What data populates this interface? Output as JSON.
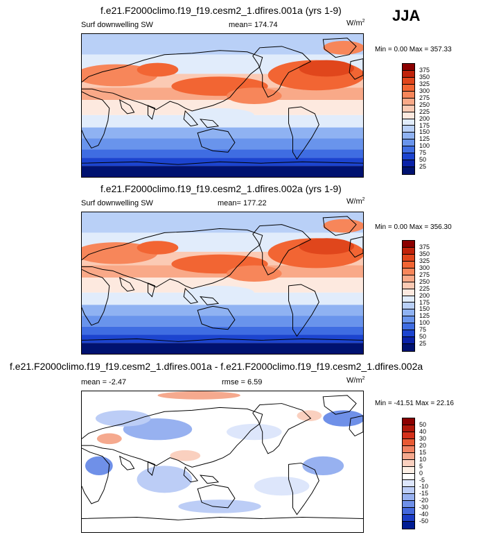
{
  "season": "JJA",
  "chart_data": [
    {
      "type": "heatmap",
      "title": "f.e21.F2000climo.f19_f19.cesm2_1.dfires.001a (yrs 1-9)",
      "variable": "Surf downwelling SW",
      "stat_label": "mean=",
      "stat_value": "174.74",
      "units": "W/m",
      "units_exp": "2",
      "minmax": "Min =   0.00 Max = 357.33",
      "min": 0.0,
      "max": 357.33,
      "levels": [
        "375",
        "350",
        "325",
        "300",
        "275",
        "250",
        "225",
        "200",
        "175",
        "150",
        "125",
        "100",
        "75",
        "50",
        "25"
      ],
      "colors": [
        "#8b0000",
        "#c0230b",
        "#e0461c",
        "#f26533",
        "#f7865a",
        "#f9a988",
        "#fbcab4",
        "#fde9df",
        "#e1ecfb",
        "#b9d0f7",
        "#8fb2f2",
        "#6994ec",
        "#3f6de2",
        "#1c44cf",
        "#0a22a8",
        "#001270"
      ]
    },
    {
      "type": "heatmap",
      "title": "f.e21.F2000climo.f19_f19.cesm2_1.dfires.002a (yrs 1-9)",
      "variable": "Surf downwelling SW",
      "stat_label": "mean=",
      "stat_value": "177.22",
      "units": "W/m",
      "units_exp": "2",
      "minmax": "Min =   0.00 Max = 356.30",
      "min": 0.0,
      "max": 356.3,
      "levels": [
        "375",
        "350",
        "325",
        "300",
        "275",
        "250",
        "225",
        "200",
        "175",
        "150",
        "125",
        "100",
        "75",
        "50",
        "25"
      ],
      "colors": [
        "#8b0000",
        "#c0230b",
        "#e0461c",
        "#f26533",
        "#f7865a",
        "#f9a988",
        "#fbcab4",
        "#fde9df",
        "#e1ecfb",
        "#b9d0f7",
        "#8fb2f2",
        "#6994ec",
        "#3f6de2",
        "#1c44cf",
        "#0a22a8",
        "#001270"
      ]
    },
    {
      "type": "heatmap",
      "title": "f.e21.F2000climo.f19_f19.cesm2_1.dfires.001a - f.e21.F2000climo.f19_f19.cesm2_1.dfires.002a",
      "stat_label": "mean =",
      "stat_value": "-2.47",
      "rmse_label": "rmse =",
      "rmse_value": "6.59",
      "units": "W/m",
      "units_exp": "2",
      "minmax": "Min = -41.51 Max =  22.16",
      "min": -41.51,
      "max": 22.16,
      "levels": [
        "50",
        "40",
        "30",
        "20",
        "15",
        "10",
        "5",
        "0",
        "-5",
        "-10",
        "-15",
        "-20",
        "-30",
        "-40",
        "-50"
      ],
      "colors": [
        "#8b0000",
        "#b0170a",
        "#d4301a",
        "#e85a34",
        "#f08262",
        "#f5a98e",
        "#fad0bf",
        "#fdf0e6",
        "#ffffff",
        "#dde6fb",
        "#bccdf6",
        "#97b1f0",
        "#6f90e8",
        "#4468dc",
        "#1c3dc5",
        "#001c93"
      ]
    }
  ]
}
